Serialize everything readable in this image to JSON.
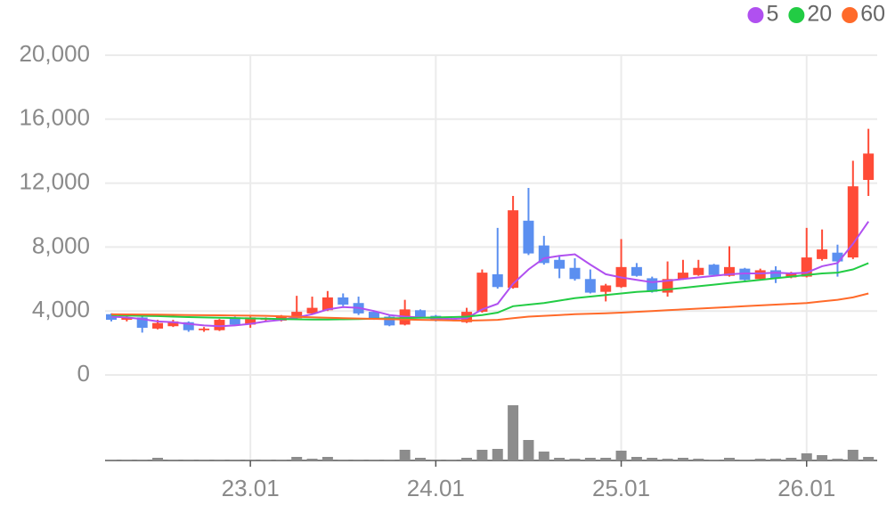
{
  "chart_data": {
    "type": "candlestick",
    "categories": [
      null,
      null,
      null,
      null,
      null,
      null,
      null,
      null,
      null,
      "23.01",
      null,
      null,
      null,
      null,
      null,
      null,
      null,
      null,
      null,
      null,
      null,
      "24.01",
      null,
      null,
      null,
      null,
      null,
      null,
      null,
      null,
      null,
      null,
      null,
      "25.01",
      null,
      null,
      null,
      null,
      null,
      null,
      null,
      null,
      null,
      null,
      null,
      "26.01",
      null,
      null,
      null,
      null
    ],
    "open": [
      3800,
      3450,
      3600,
      2900,
      3050,
      3300,
      2800,
      2800,
      3600,
      3150,
      3450,
      3400,
      3550,
      3850,
      4050,
      4850,
      4500,
      3950,
      3650,
      3150,
      4050,
      3700,
      3550,
      3300,
      3950,
      6300,
      5450,
      9650,
      8100,
      7200,
      6700,
      6000,
      5200,
      5500,
      6750,
      6050,
      5150,
      6000,
      6250,
      6900,
      6200,
      6650,
      6000,
      6550,
      6100,
      6150,
      7250,
      7650,
      7350,
      12200
    ],
    "high": [
      3850,
      3700,
      3650,
      3450,
      3450,
      3350,
      3000,
      3500,
      3650,
      3650,
      3600,
      3750,
      4950,
      4900,
      5250,
      5100,
      4900,
      4000,
      3700,
      4700,
      4100,
      3750,
      3600,
      4200,
      6600,
      9200,
      11200,
      11700,
      8700,
      7500,
      7300,
      6600,
      5700,
      8500,
      7000,
      6150,
      7100,
      7200,
      7200,
      6950,
      8050,
      6700,
      6650,
      6800,
      6450,
      9200,
      9100,
      8150,
      13400,
      15400
    ],
    "low": [
      3350,
      3350,
      2650,
      2850,
      3000,
      2700,
      2700,
      2750,
      3100,
      2950,
      3400,
      3350,
      3500,
      3800,
      4000,
      4300,
      3750,
      3450,
      3050,
      3100,
      3600,
      3350,
      3400,
      3250,
      3900,
      5400,
      5400,
      7500,
      6900,
      6050,
      5900,
      5100,
      4600,
      5450,
      6150,
      5150,
      4900,
      5950,
      6200,
      6200,
      6150,
      5900,
      5950,
      5750,
      6050,
      6100,
      7150,
      6150,
      7250,
      11200
    ],
    "close": [
      3450,
      3600,
      2950,
      3250,
      3350,
      2800,
      2900,
      3450,
      3150,
      3600,
      3550,
      3700,
      3950,
      4200,
      4850,
      4400,
      3850,
      3500,
      3100,
      4100,
      3650,
      3400,
      3450,
      3950,
      6400,
      5500,
      10300,
      7600,
      7000,
      6650,
      6000,
      5150,
      5600,
      6750,
      6200,
      5200,
      6000,
      6400,
      6700,
      6250,
      6750,
      5950,
      6550,
      6050,
      6400,
      7350,
      7850,
      7100,
      11800,
      13850
    ],
    "volume": [
      1,
      1,
      1,
      3,
      1,
      1,
      1,
      1,
      1,
      1,
      1,
      1,
      4,
      2,
      4,
      1,
      1,
      1,
      1,
      12,
      3,
      1,
      1,
      3,
      12,
      13,
      62,
      23,
      10,
      3,
      2,
      3,
      3,
      11,
      4,
      3,
      2,
      3,
      2,
      1,
      3,
      1,
      2,
      2,
      3,
      8,
      6,
      2,
      12,
      4
    ],
    "up_color": "#ff4b37",
    "down_color": "#5b8ff0",
    "volume_color": "#8c8c8c",
    "series": [
      {
        "name": "5",
        "color": "#b050f0",
        "values": [
          3650,
          3600,
          3500,
          3350,
          3300,
          3200,
          3100,
          3050,
          3100,
          3200,
          3350,
          3450,
          3600,
          3800,
          4100,
          4250,
          4200,
          4000,
          3750,
          3650,
          3600,
          3550,
          3500,
          3550,
          4100,
          4450,
          5700,
          6600,
          7300,
          7450,
          7550,
          6900,
          6300,
          6100,
          5950,
          5800,
          5900,
          6000,
          6100,
          6200,
          6300,
          6350,
          6350,
          6400,
          6350,
          6400,
          6800,
          7000,
          8200,
          9600
        ]
      },
      {
        "name": "20",
        "color": "#22cc44",
        "values": [
          3750,
          3720,
          3700,
          3680,
          3650,
          3620,
          3600,
          3580,
          3560,
          3540,
          3520,
          3500,
          3480,
          3470,
          3470,
          3480,
          3500,
          3520,
          3540,
          3560,
          3580,
          3600,
          3620,
          3650,
          3750,
          3900,
          4300,
          4400,
          4500,
          4650,
          4800,
          4900,
          5000,
          5100,
          5200,
          5250,
          5350,
          5450,
          5550,
          5650,
          5750,
          5850,
          5950,
          6050,
          6150,
          6250,
          6350,
          6400,
          6600,
          7000
        ]
      },
      {
        "name": "60",
        "color": "#ff6a2a",
        "values": [
          3800,
          3790,
          3780,
          3770,
          3760,
          3750,
          3740,
          3730,
          3720,
          3710,
          3700,
          3670,
          3640,
          3610,
          3580,
          3550,
          3530,
          3510,
          3490,
          3470,
          3450,
          3430,
          3410,
          3400,
          3420,
          3450,
          3550,
          3650,
          3700,
          3750,
          3800,
          3830,
          3860,
          3900,
          3950,
          4000,
          4050,
          4100,
          4150,
          4200,
          4250,
          4300,
          4350,
          4400,
          4450,
          4500,
          4600,
          4700,
          4850,
          5100
        ]
      }
    ],
    "ylim": [
      0,
      20000
    ],
    "yticks": [
      0,
      {
        "value": 4000,
        "label": "4,000"
      },
      {
        "value": 8000,
        "label": "8,000"
      },
      {
        "value": 12000,
        "label": "12,000"
      },
      {
        "value": 16000,
        "label": "16,000"
      },
      {
        "value": 20000,
        "label": "20,000"
      }
    ],
    "grid": true,
    "legend": "top-right"
  }
}
